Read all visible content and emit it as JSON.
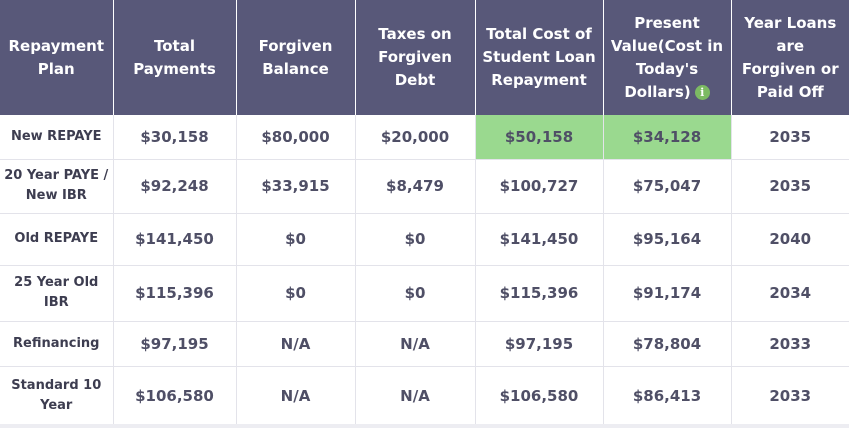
{
  "table": {
    "headers": [
      "Repayment Plan",
      "Total Payments",
      "Forgiven Balance",
      "Taxes on Forgiven Debt",
      "Total Cost of Student Loan Repayment",
      "Present Value(Cost in Today's Dollars)",
      "Year Loans are Forgiven or Paid Off"
    ],
    "info_icon_glyph": "i",
    "highlight_color": "#9ad98f",
    "header_color": "#585879",
    "rows": [
      [
        "New REPAYE",
        "$30,158",
        "$80,000",
        "$20,000",
        "$50,158",
        "$34,128",
        "2035"
      ],
      [
        "20 Year PAYE / New IBR",
        "$92,248",
        "$33,915",
        "$8,479",
        "$100,727",
        "$75,047",
        "2035"
      ],
      [
        "Old REPAYE",
        "$141,450",
        "$0",
        "$0",
        "$141,450",
        "$95,164",
        "2040"
      ],
      [
        "25 Year Old IBR",
        "$115,396",
        "$0",
        "$0",
        "$115,396",
        "$91,174",
        "2034"
      ],
      [
        "Refinancing",
        "$97,195",
        "N/A",
        "N/A",
        "$97,195",
        "$78,804",
        "2033"
      ],
      [
        "Standard 10 Year",
        "$106,580",
        "N/A",
        "N/A",
        "$106,580",
        "$86,413",
        "2033"
      ]
    ]
  }
}
